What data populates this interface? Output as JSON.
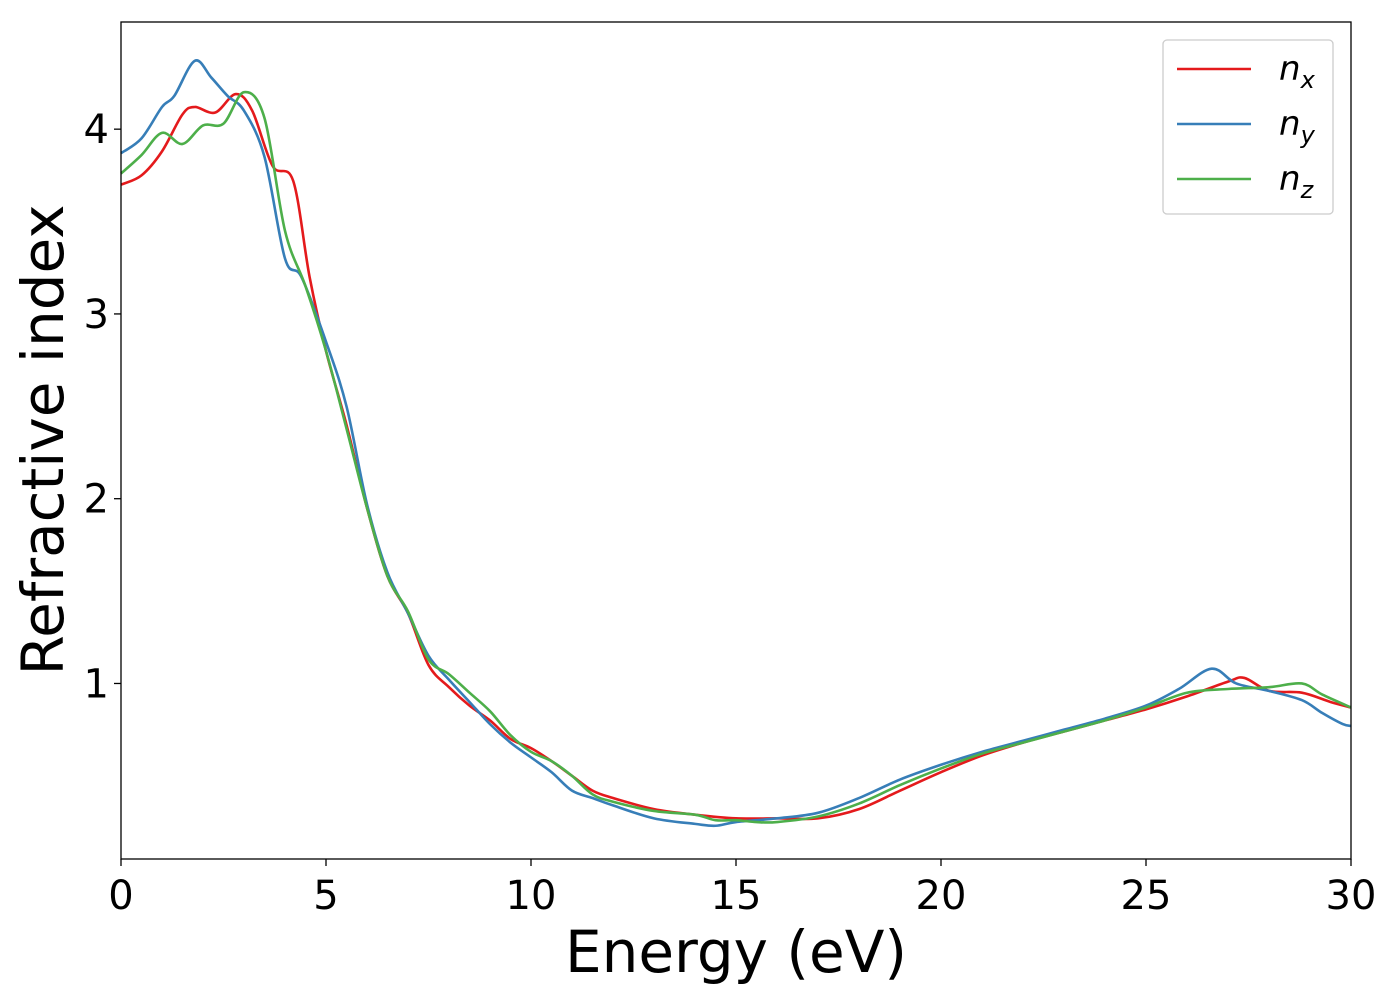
{
  "chart_data": {
    "type": "line",
    "title": "",
    "xlabel": "Energy (eV)",
    "ylabel": "Refractive index",
    "xlim": [
      0,
      30
    ],
    "ylim": [
      0.05,
      4.58
    ],
    "xticks": [
      0,
      5,
      10,
      15,
      20,
      25,
      30
    ],
    "xtick_labels": [
      "0",
      "5",
      "10",
      "15",
      "20",
      "25",
      "30"
    ],
    "yticks": [
      1,
      2,
      3,
      4
    ],
    "ytick_labels": [
      "1",
      "2",
      "3",
      "4"
    ],
    "grid": false,
    "legend_position": "top-right",
    "series": [
      {
        "name": "n_x",
        "label_base": "n",
        "label_sub": "x",
        "color": "#e41a1c",
        "points": [
          [
            0,
            3.7
          ],
          [
            0.5,
            3.75
          ],
          [
            1.0,
            3.88
          ],
          [
            1.5,
            4.08
          ],
          [
            1.8,
            4.12
          ],
          [
            2.3,
            4.09
          ],
          [
            2.8,
            4.19
          ],
          [
            3.2,
            4.1
          ],
          [
            3.7,
            3.8
          ],
          [
            4.2,
            3.72
          ],
          [
            4.6,
            3.2
          ],
          [
            5.0,
            2.8
          ],
          [
            5.5,
            2.4
          ],
          [
            6.0,
            1.95
          ],
          [
            6.5,
            1.58
          ],
          [
            7.0,
            1.38
          ],
          [
            7.5,
            1.1
          ],
          [
            8.0,
            0.98
          ],
          [
            8.5,
            0.88
          ],
          [
            9.0,
            0.8
          ],
          [
            9.5,
            0.7
          ],
          [
            10.0,
            0.65
          ],
          [
            10.5,
            0.58
          ],
          [
            11.0,
            0.5
          ],
          [
            11.5,
            0.42
          ],
          [
            12.0,
            0.38
          ],
          [
            13.0,
            0.32
          ],
          [
            14.0,
            0.29
          ],
          [
            15.0,
            0.27
          ],
          [
            16.0,
            0.27
          ],
          [
            17.0,
            0.27
          ],
          [
            18.0,
            0.32
          ],
          [
            19.0,
            0.42
          ],
          [
            20.0,
            0.52
          ],
          [
            21.0,
            0.61
          ],
          [
            22.0,
            0.68
          ],
          [
            23.0,
            0.74
          ],
          [
            24.0,
            0.8
          ],
          [
            25.0,
            0.86
          ],
          [
            26.0,
            0.93
          ],
          [
            27.0,
            1.01
          ],
          [
            27.4,
            1.03
          ],
          [
            28.0,
            0.96
          ],
          [
            28.8,
            0.95
          ],
          [
            29.5,
            0.9
          ],
          [
            30.0,
            0.87
          ]
        ]
      },
      {
        "name": "n_y",
        "label_base": "n",
        "label_sub": "y",
        "color": "#377eb8",
        "points": [
          [
            0,
            3.87
          ],
          [
            0.5,
            3.95
          ],
          [
            1.0,
            4.12
          ],
          [
            1.3,
            4.18
          ],
          [
            1.8,
            4.37
          ],
          [
            2.2,
            4.28
          ],
          [
            2.6,
            4.18
          ],
          [
            3.0,
            4.1
          ],
          [
            3.5,
            3.85
          ],
          [
            4.0,
            3.3
          ],
          [
            4.4,
            3.2
          ],
          [
            5.0,
            2.85
          ],
          [
            5.5,
            2.5
          ],
          [
            6.0,
            1.97
          ],
          [
            6.5,
            1.6
          ],
          [
            7.0,
            1.38
          ],
          [
            7.5,
            1.15
          ],
          [
            8.0,
            1.02
          ],
          [
            8.5,
            0.9
          ],
          [
            9.0,
            0.78
          ],
          [
            9.5,
            0.68
          ],
          [
            10.0,
            0.6
          ],
          [
            10.5,
            0.52
          ],
          [
            11.0,
            0.42
          ],
          [
            11.5,
            0.38
          ],
          [
            12.0,
            0.34
          ],
          [
            13.0,
            0.27
          ],
          [
            14.0,
            0.24
          ],
          [
            14.5,
            0.23
          ],
          [
            15.0,
            0.25
          ],
          [
            16.0,
            0.27
          ],
          [
            17.0,
            0.3
          ],
          [
            18.0,
            0.38
          ],
          [
            19.0,
            0.48
          ],
          [
            20.0,
            0.56
          ],
          [
            21.0,
            0.63
          ],
          [
            22.0,
            0.69
          ],
          [
            23.0,
            0.75
          ],
          [
            24.0,
            0.81
          ],
          [
            25.0,
            0.88
          ],
          [
            25.8,
            0.97
          ],
          [
            26.6,
            1.08
          ],
          [
            27.2,
            1.0
          ],
          [
            28.0,
            0.96
          ],
          [
            28.8,
            0.91
          ],
          [
            29.3,
            0.84
          ],
          [
            29.8,
            0.78
          ],
          [
            30.0,
            0.77
          ]
        ]
      },
      {
        "name": "n_z",
        "label_base": "n",
        "label_sub": "z",
        "color": "#4daf4a",
        "points": [
          [
            0,
            3.76
          ],
          [
            0.5,
            3.86
          ],
          [
            1.0,
            3.98
          ],
          [
            1.5,
            3.92
          ],
          [
            2.0,
            4.02
          ],
          [
            2.5,
            4.03
          ],
          [
            3.0,
            4.2
          ],
          [
            3.5,
            4.06
          ],
          [
            4.0,
            3.45
          ],
          [
            4.5,
            3.15
          ],
          [
            5.0,
            2.8
          ],
          [
            5.5,
            2.38
          ],
          [
            6.0,
            1.95
          ],
          [
            6.5,
            1.58
          ],
          [
            7.0,
            1.39
          ],
          [
            7.5,
            1.13
          ],
          [
            8.0,
            1.05
          ],
          [
            8.5,
            0.95
          ],
          [
            9.0,
            0.85
          ],
          [
            9.5,
            0.72
          ],
          [
            10.0,
            0.63
          ],
          [
            10.5,
            0.58
          ],
          [
            11.0,
            0.5
          ],
          [
            11.5,
            0.4
          ],
          [
            12.0,
            0.36
          ],
          [
            13.0,
            0.31
          ],
          [
            14.0,
            0.29
          ],
          [
            14.5,
            0.26
          ],
          [
            15.0,
            0.26
          ],
          [
            15.5,
            0.25
          ],
          [
            16.0,
            0.25
          ],
          [
            17.0,
            0.28
          ],
          [
            18.0,
            0.35
          ],
          [
            19.0,
            0.45
          ],
          [
            20.0,
            0.54
          ],
          [
            21.0,
            0.62
          ],
          [
            22.0,
            0.68
          ],
          [
            23.0,
            0.74
          ],
          [
            24.0,
            0.8
          ],
          [
            25.0,
            0.87
          ],
          [
            26.0,
            0.95
          ],
          [
            27.0,
            0.97
          ],
          [
            28.0,
            0.98
          ],
          [
            28.8,
            1.0
          ],
          [
            29.3,
            0.94
          ],
          [
            30.0,
            0.87
          ]
        ]
      }
    ]
  }
}
